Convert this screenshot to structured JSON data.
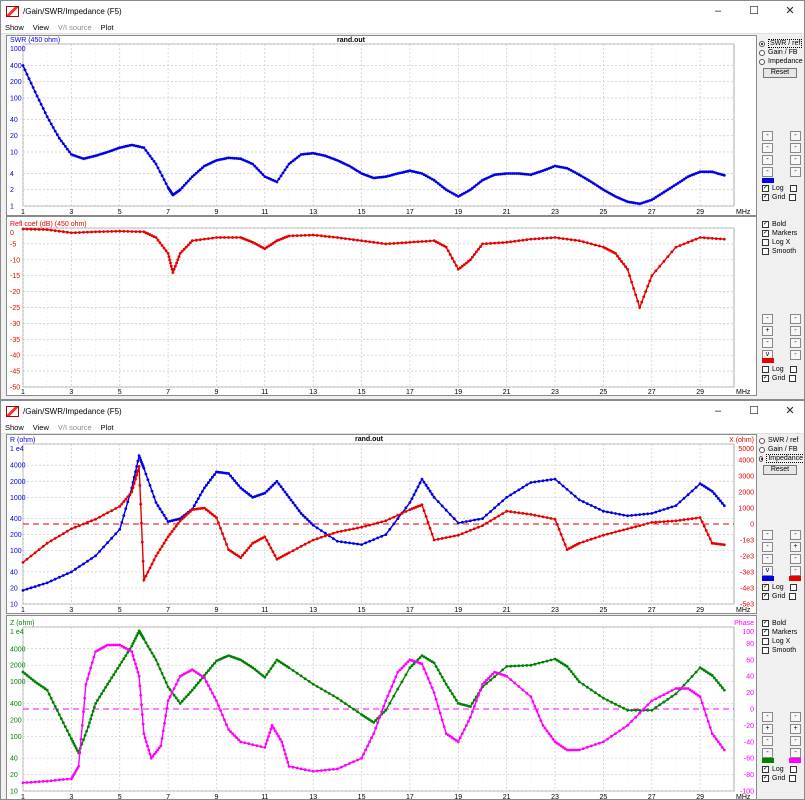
{
  "title": "/Gain/SWR/Impedance (F5)",
  "window_controls": {
    "minimize": "–",
    "maximize": "☐",
    "close": "✕"
  },
  "menu": [
    "Show",
    "View",
    "V/I source",
    "Plot"
  ],
  "file_label": "rand.out",
  "x_unit": "MHz",
  "x_ticks": [
    "1",
    "3",
    "5",
    "7",
    "9",
    "11",
    "13",
    "15",
    "17",
    "19",
    "21",
    "23",
    "25",
    "27",
    "29"
  ],
  "colors": {
    "blue": "#0000e6",
    "red": "#e60000",
    "green": "#008000",
    "magenta": "#ff00ff",
    "grid": "#c8c8c8"
  },
  "win1": {
    "radio": [
      {
        "label": "SWR / ref",
        "on": true
      },
      {
        "label": "Gain / FB",
        "on": false
      },
      {
        "label": "Impedance",
        "on": false
      }
    ],
    "reset_label": "Reset",
    "top_checks": [
      {
        "label": "Log",
        "on": true
      },
      {
        "label": "Grid",
        "on": true
      }
    ],
    "style_checks": [
      {
        "label": "Bold",
        "on": true
      },
      {
        "label": "Markers",
        "on": true
      },
      {
        "label": "Log X",
        "on": false
      },
      {
        "label": "Smooth",
        "on": false
      }
    ],
    "bottom_checks": [
      {
        "label": "Log",
        "on": false
      },
      {
        "label": "Grid",
        "on": true
      }
    ]
  },
  "win2": {
    "radio": [
      {
        "label": "SWR / ref",
        "on": false
      },
      {
        "label": "Gain / FB",
        "on": false
      },
      {
        "label": "Impedance",
        "on": true
      }
    ],
    "reset_label": "Reset",
    "top_checks": [
      {
        "label": "Log",
        "on": true
      },
      {
        "label": "Grid",
        "on": true
      }
    ],
    "style_checks": [
      {
        "label": "Bold",
        "on": true
      },
      {
        "label": "Markers",
        "on": true
      },
      {
        "label": "Log X",
        "on": false
      },
      {
        "label": "Smooth",
        "on": false
      }
    ],
    "bottom_checks": [
      {
        "label": "Log",
        "on": true
      },
      {
        "label": "Grid",
        "on": true
      }
    ]
  },
  "chart_data": [
    {
      "type": "line",
      "title": "rand.out",
      "ylabel": "SWR (450 ohm)",
      "xlabel": "MHz",
      "log_y": true,
      "ylim": [
        1,
        1000
      ],
      "y_ticks": [
        "1000",
        "400",
        "200",
        "100",
        "40",
        "20",
        "10",
        "4",
        "2",
        "1"
      ],
      "y_tick_values": [
        1000,
        400,
        200,
        100,
        40,
        20,
        10,
        4,
        2,
        1
      ],
      "series": [
        {
          "color": "blue",
          "x": [
            1,
            1.5,
            2,
            2.5,
            3,
            3.5,
            4,
            4.5,
            5,
            5.5,
            6,
            6.5,
            7,
            7.2,
            7.5,
            8,
            8.5,
            9,
            9.5,
            10,
            10.5,
            11,
            11.5,
            12,
            12.5,
            13,
            13.5,
            14,
            14.5,
            15,
            15.5,
            16,
            16.5,
            17,
            17.5,
            18,
            18.5,
            19,
            19.5,
            20,
            20.5,
            21,
            21.5,
            22,
            22.5,
            23,
            23.5,
            24,
            24.5,
            25,
            25.5,
            26,
            26.5,
            27,
            27.5,
            28,
            28.5,
            29,
            29.5,
            30
          ],
          "y": [
            400,
            130,
            45,
            18,
            9,
            7.5,
            8.5,
            10,
            12,
            13.5,
            12,
            6,
            2.2,
            1.6,
            2,
            3.5,
            5.5,
            7,
            7.8,
            7.5,
            6,
            3.5,
            2.8,
            6,
            9,
            9.5,
            8.5,
            7,
            5.5,
            4,
            3.3,
            3.5,
            4,
            4.5,
            4,
            3,
            2,
            1.5,
            2,
            3,
            3.8,
            4,
            4,
            3.8,
            4.5,
            5.5,
            5,
            3.8,
            2.8,
            2,
            1.5,
            1.2,
            1.1,
            1.3,
            1.8,
            2.5,
            3.5,
            4.3,
            4.3,
            3.7
          ]
        }
      ]
    },
    {
      "type": "line",
      "ylabel": "Refl coef (dB) (450 ohm)",
      "xlabel": "MHz",
      "ylim": [
        -50,
        0
      ],
      "y_ticks": [
        "0",
        "-5",
        "-10",
        "-15",
        "-20",
        "-25",
        "-30",
        "-35",
        "-40",
        "-45",
        "-50"
      ],
      "y_tick_values": [
        0,
        -5,
        -10,
        -15,
        -20,
        -25,
        -30,
        -35,
        -40,
        -45,
        -50
      ],
      "series": [
        {
          "color": "red",
          "x": [
            1,
            2,
            3,
            4,
            5,
            6,
            6.5,
            7,
            7.2,
            7.5,
            8,
            9,
            10,
            10.5,
            11,
            11.5,
            12,
            13,
            14,
            15,
            16,
            17,
            18,
            18.5,
            19,
            19.5,
            20,
            21,
            22,
            23,
            24,
            25,
            25.5,
            26,
            26.5,
            27,
            28,
            29,
            30
          ],
          "y": [
            -0.3,
            -0.5,
            -1.5,
            -1.2,
            -1,
            -1.2,
            -3,
            -8,
            -14,
            -8,
            -4,
            -3,
            -3,
            -4.5,
            -6.5,
            -4,
            -2.5,
            -2.2,
            -3,
            -4,
            -5,
            -4.5,
            -4,
            -6,
            -13,
            -10,
            -5,
            -4.5,
            -3.5,
            -3,
            -4,
            -6,
            -8,
            -13,
            -25,
            -15,
            -6,
            -3,
            -3.5
          ]
        }
      ]
    },
    {
      "type": "line",
      "title": "rand.out",
      "xlabel": "MHz",
      "ylabel": "R (ohm)",
      "ylabel_right": "X (ohm)",
      "y_ticks": [
        "1 e4",
        "4000",
        "2000",
        "1000",
        "400",
        "200",
        "100",
        "40",
        "20",
        "10"
      ],
      "y_tick_values": [
        10000,
        4000,
        2000,
        1000,
        400,
        200,
        100,
        40,
        20,
        10
      ],
      "y_ticks_right": [
        "5000",
        "4000",
        "3000",
        "2000",
        "1000",
        "0",
        "-1e3",
        "-2e3",
        "-3e3",
        "-4e3",
        "-5e3"
      ],
      "y_tick_values_right": [
        5000,
        4000,
        3000,
        2000,
        1000,
        0,
        -1000,
        -2000,
        -3000,
        -4000,
        -5000
      ],
      "series": [
        {
          "name": "R",
          "color": "blue",
          "axis": "log",
          "ylim": [
            10,
            10000
          ],
          "x": [
            1,
            2,
            3,
            4,
            5,
            5.5,
            5.8,
            6,
            6.5,
            7,
            7.5,
            8,
            8.5,
            9,
            9.5,
            10,
            10.5,
            11,
            11.5,
            12,
            12.5,
            13,
            14,
            15,
            16,
            17,
            17.5,
            18,
            19,
            20,
            21,
            22,
            23,
            24,
            25,
            26,
            27,
            28,
            29,
            29.5,
            30
          ],
          "y": [
            18,
            25,
            40,
            80,
            250,
            1500,
            6000,
            3500,
            800,
            350,
            400,
            600,
            1500,
            3000,
            2800,
            1500,
            1000,
            1200,
            2000,
            1000,
            500,
            300,
            150,
            130,
            200,
            800,
            2200,
            1000,
            330,
            400,
            1000,
            1900,
            2200,
            900,
            550,
            450,
            500,
            700,
            1800,
            1300,
            700
          ]
        },
        {
          "name": "X",
          "color": "red",
          "axis": "lin",
          "ylim": [
            -5000,
            5000
          ],
          "x": [
            1,
            2,
            3,
            4,
            5,
            5.5,
            5.8,
            6,
            6.5,
            7,
            7.5,
            8,
            8.5,
            9,
            9.5,
            10,
            10.5,
            11,
            11.5,
            12,
            13,
            14,
            15,
            16,
            17,
            17.5,
            18,
            19,
            20,
            21,
            22,
            23,
            23.5,
            24,
            25,
            26,
            27,
            28,
            29,
            29.5,
            30
          ],
          "y": [
            -2400,
            -1200,
            -300,
            300,
            1100,
            2000,
            3600,
            -3500,
            -2000,
            -800,
            200,
            900,
            1000,
            400,
            -1600,
            -2100,
            -1200,
            -800,
            -2200,
            -1800,
            -1000,
            -500,
            -200,
            200,
            900,
            1200,
            -1000,
            -700,
            -100,
            800,
            600,
            300,
            -1600,
            -1200,
            -700,
            -300,
            100,
            200,
            400,
            -1200,
            -1300
          ]
        }
      ]
    },
    {
      "type": "line",
      "xlabel": "MHz",
      "ylabel": "Z (ohm)",
      "ylabel_right": "Phase",
      "y_ticks": [
        "1 e4",
        "4000",
        "2000",
        "1000",
        "400",
        "200",
        "100",
        "40",
        "20",
        "10"
      ],
      "y_tick_values": [
        10000,
        4000,
        2000,
        1000,
        400,
        200,
        100,
        40,
        20,
        10
      ],
      "y_ticks_right": [
        "100",
        "80",
        "60",
        "40",
        "20",
        "0",
        "-20",
        "-40",
        "-60",
        "-80",
        "-100"
      ],
      "y_tick_values_right": [
        100,
        80,
        60,
        40,
        20,
        0,
        -20,
        -40,
        -60,
        -80,
        -100
      ],
      "series": [
        {
          "name": "Z",
          "color": "green",
          "axis": "log",
          "ylim": [
            10,
            10000
          ],
          "x": [
            1,
            1.5,
            2,
            2.5,
            3,
            3.3,
            3.7,
            4,
            4.5,
            5,
            5.5,
            5.8,
            6,
            6.5,
            7,
            7.5,
            8,
            8.5,
            9,
            9.5,
            10,
            10.5,
            11,
            11.5,
            12,
            13,
            14,
            15,
            15.5,
            16,
            17,
            17.5,
            18,
            18.5,
            19,
            19.5,
            20,
            21,
            22,
            23,
            23.5,
            24,
            25,
            26,
            27,
            28,
            29,
            29.5,
            30
          ],
          "y": [
            1500,
            1000,
            700,
            250,
            90,
            50,
            150,
            400,
            900,
            2000,
            4500,
            8500,
            6000,
            2500,
            800,
            400,
            700,
            1300,
            2400,
            3000,
            2500,
            1800,
            1200,
            2500,
            1800,
            900,
            500,
            250,
            180,
            300,
            1800,
            3000,
            2200,
            900,
            400,
            350,
            800,
            1900,
            2000,
            2600,
            1900,
            1000,
            500,
            300,
            300,
            600,
            1800,
            1300,
            700
          ]
        },
        {
          "name": "Phase",
          "color": "magenta",
          "axis": "lin",
          "ylim": [
            -100,
            100
          ],
          "x": [
            1,
            2,
            3,
            3.3,
            3.6,
            4,
            4.5,
            5,
            5.5,
            5.8,
            6,
            6.3,
            6.7,
            7,
            7.5,
            8,
            8.5,
            9,
            9.5,
            10,
            11,
            11.3,
            11.7,
            12,
            13,
            14,
            15,
            15.5,
            16,
            16.5,
            17,
            17.5,
            18,
            18.5,
            19,
            19.5,
            20,
            20.5,
            21,
            22,
            22.5,
            23,
            23.5,
            24,
            25,
            26,
            27,
            28,
            28.5,
            29,
            29.5,
            30
          ],
          "y": [
            -90,
            -88,
            -85,
            -70,
            30,
            70,
            78,
            78,
            70,
            40,
            -30,
            -60,
            -45,
            10,
            40,
            48,
            38,
            10,
            -25,
            -40,
            -47,
            -20,
            -40,
            -70,
            -76,
            -73,
            -60,
            -30,
            10,
            45,
            60,
            55,
            20,
            -30,
            -40,
            -10,
            30,
            45,
            40,
            15,
            -20,
            -40,
            -50,
            -50,
            -40,
            -20,
            10,
            25,
            25,
            15,
            -30,
            -50
          ]
        }
      ]
    }
  ]
}
